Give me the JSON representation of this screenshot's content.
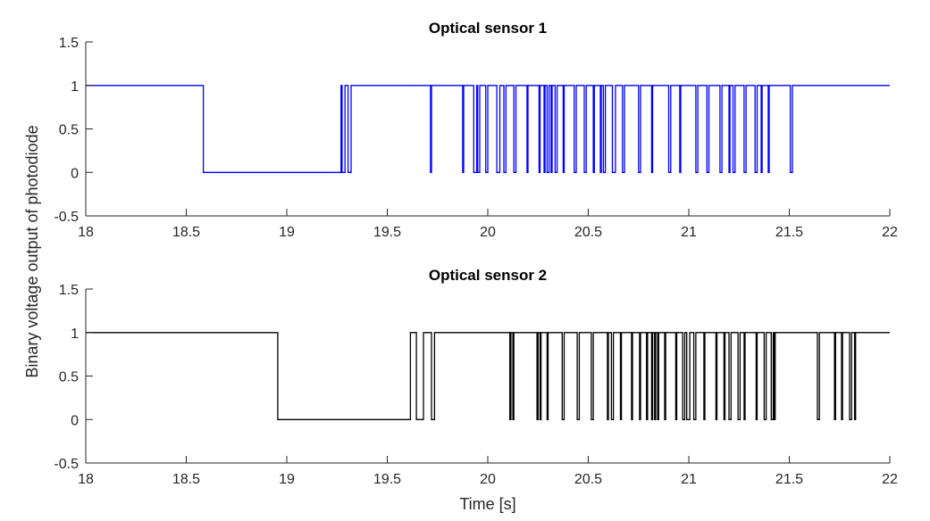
{
  "figure": {
    "xlabel": "Time [s]",
    "ylabel": "Binary voltage output of photodiode"
  },
  "chart_data": [
    {
      "type": "line",
      "step": true,
      "title": "Optical sensor 1",
      "xlim": [
        18,
        22
      ],
      "ylim": [
        -0.5,
        1.5
      ],
      "xticks": [
        18,
        18.5,
        19,
        19.5,
        20,
        20.5,
        21,
        21.5,
        22
      ],
      "yticks": [
        -0.5,
        0,
        0.5,
        1,
        1.5
      ],
      "xtick_labels": [
        "18",
        "18.5",
        "19",
        "19.5",
        "20",
        "20.5",
        "21",
        "21.5",
        "22"
      ],
      "ytick_labels": [
        "-0.5",
        "0",
        "0.5",
        "1",
        "1.5"
      ],
      "grid": false,
      "color": "#0000ff",
      "series": [
        {
          "x": [
            18.0,
            18.585,
            19.27,
            19.275,
            19.29,
            19.305,
            19.32,
            19.33,
            19.715,
            19.72,
            19.875,
            19.88,
            19.93,
            19.945,
            19.95,
            19.96,
            19.99,
            20.0,
            20.045,
            20.06,
            20.08,
            20.09,
            20.13,
            20.14,
            20.195,
            20.2,
            20.255,
            20.26,
            20.28,
            20.285,
            20.295,
            20.305,
            20.315,
            20.32,
            20.335,
            20.345,
            20.375,
            20.38,
            20.43,
            20.44,
            20.48,
            20.49,
            20.525,
            20.53,
            20.56,
            20.565,
            20.575,
            20.585,
            20.62,
            20.635,
            20.67,
            20.68,
            20.75,
            20.76,
            20.815,
            20.82,
            20.9,
            20.91,
            20.955,
            20.96,
            21.035,
            21.045,
            21.09,
            21.1,
            21.155,
            21.165,
            21.2,
            21.205,
            21.22,
            21.23,
            21.275,
            21.285,
            21.33,
            21.34,
            21.36,
            21.365,
            21.395,
            21.4,
            21.505,
            21.515,
            22.0
          ],
          "y": [
            1,
            0,
            1,
            0,
            1,
            0,
            1,
            1,
            0,
            1,
            0,
            1,
            0,
            1,
            0,
            1,
            0,
            1,
            0,
            1,
            0,
            1,
            0,
            1,
            0,
            1,
            0,
            1,
            0,
            1,
            0,
            1,
            0,
            1,
            0,
            1,
            0,
            1,
            0,
            1,
            0,
            1,
            0,
            1,
            0,
            1,
            0,
            1,
            0,
            1,
            0,
            1,
            0,
            1,
            0,
            1,
            0,
            1,
            0,
            1,
            0,
            1,
            0,
            1,
            0,
            1,
            0,
            1,
            0,
            1,
            0,
            1,
            0,
            1,
            0,
            1,
            0,
            1,
            0,
            1,
            1
          ]
        }
      ]
    },
    {
      "type": "line",
      "step": true,
      "title": "Optical sensor 2",
      "xlim": [
        18,
        22
      ],
      "ylim": [
        -0.5,
        1.5
      ],
      "xticks": [
        18,
        18.5,
        19,
        19.5,
        20,
        20.5,
        21,
        21.5,
        22
      ],
      "yticks": [
        -0.5,
        0,
        0.5,
        1,
        1.5
      ],
      "xtick_labels": [
        "18",
        "18.5",
        "19",
        "19.5",
        "20",
        "20.5",
        "21",
        "21.5",
        "22"
      ],
      "ytick_labels": [
        "-0.5",
        "0",
        "0.5",
        "1",
        "1.5"
      ],
      "grid": false,
      "color": "#000000",
      "series": [
        {
          "x": [
            18.0,
            18.955,
            19.615,
            19.645,
            19.68,
            19.72,
            19.735,
            20.11,
            20.115,
            20.125,
            20.13,
            20.245,
            20.25,
            20.26,
            20.265,
            20.295,
            20.3,
            20.37,
            20.38,
            20.445,
            20.455,
            20.515,
            20.525,
            20.595,
            20.6,
            20.615,
            20.625,
            20.66,
            20.665,
            20.715,
            20.72,
            20.755,
            20.76,
            20.79,
            20.795,
            20.815,
            20.82,
            20.83,
            20.835,
            20.845,
            20.85,
            20.88,
            20.885,
            20.935,
            20.94,
            20.97,
            20.98,
            20.99,
            21.005,
            21.025,
            21.035,
            21.075,
            21.08,
            21.135,
            21.14,
            21.175,
            21.18,
            21.2,
            21.21,
            21.245,
            21.255,
            21.275,
            21.28,
            21.335,
            21.34,
            21.375,
            21.385,
            21.41,
            21.42,
            21.425,
            21.43,
            21.64,
            21.65,
            21.725,
            21.73,
            21.76,
            21.765,
            21.8,
            21.81,
            21.825,
            21.83,
            22.0
          ],
          "y": [
            1,
            0,
            1,
            0,
            1,
            0,
            1,
            0,
            1,
            0,
            1,
            0,
            1,
            0,
            1,
            0,
            1,
            0,
            1,
            0,
            1,
            0,
            1,
            0,
            1,
            0,
            1,
            0,
            1,
            0,
            1,
            0,
            1,
            0,
            1,
            0,
            1,
            0,
            1,
            0,
            1,
            0,
            1,
            0,
            1,
            0,
            1,
            0,
            1,
            0,
            1,
            0,
            1,
            0,
            1,
            0,
            1,
            0,
            1,
            0,
            1,
            0,
            1,
            0,
            1,
            0,
            1,
            0,
            1,
            0,
            1,
            0,
            1,
            0,
            1,
            0,
            1,
            0,
            1,
            0,
            1,
            1
          ]
        }
      ]
    }
  ]
}
